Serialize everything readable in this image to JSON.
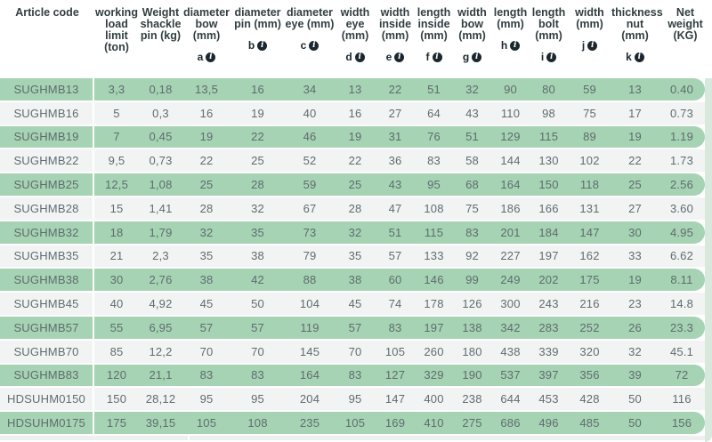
{
  "table": {
    "columns": [
      {
        "key": "article-code",
        "title": "Article code",
        "sub": ""
      },
      {
        "key": "working-load",
        "title": "working load limit (ton)",
        "sub": ""
      },
      {
        "key": "weight-shackle-pin",
        "title": "Weight shackle pin (kg)",
        "sub": ""
      },
      {
        "key": "diameter-bow",
        "title": "diameter bow (mm)",
        "sub": "a"
      },
      {
        "key": "diameter-pin",
        "title": "diameter pin (mm)",
        "sub": "b"
      },
      {
        "key": "diameter-eye",
        "title": "diameter eye (mm)",
        "sub": "c"
      },
      {
        "key": "width-eye",
        "title": "width eye (mm)",
        "sub": "d"
      },
      {
        "key": "width-inside",
        "title": "width inside (mm)",
        "sub": "e"
      },
      {
        "key": "length-inside",
        "title": "length inside (mm)",
        "sub": "f"
      },
      {
        "key": "width-bow",
        "title": "width bow (mm)",
        "sub": "g"
      },
      {
        "key": "length",
        "title": "length (mm)",
        "sub": "h"
      },
      {
        "key": "length-bolt",
        "title": "length bolt (mm)",
        "sub": "i"
      },
      {
        "key": "width",
        "title": "width (mm)",
        "sub": "j"
      },
      {
        "key": "thickness-nut",
        "title": "thickness nut (mm)",
        "sub": "k"
      },
      {
        "key": "net-weight",
        "title": "Net weight (KG)",
        "sub": ""
      }
    ],
    "info_icon_glyph": "i",
    "rows": [
      [
        "SUGHMB13",
        "3,3",
        "0,18",
        "13,5",
        "16",
        "34",
        "13",
        "22",
        "51",
        "32",
        "90",
        "80",
        "59",
        "13",
        "0.40"
      ],
      [
        "SUGHMB16",
        "5",
        "0,3",
        "16",
        "19",
        "40",
        "16",
        "27",
        "64",
        "43",
        "110",
        "98",
        "75",
        "17",
        "0.73"
      ],
      [
        "SUGHMB19",
        "7",
        "0,45",
        "19",
        "22",
        "46",
        "19",
        "31",
        "76",
        "51",
        "129",
        "115",
        "89",
        "19",
        "1.19"
      ],
      [
        "SUGHMB22",
        "9,5",
        "0,73",
        "22",
        "25",
        "52",
        "22",
        "36",
        "83",
        "58",
        "144",
        "130",
        "102",
        "22",
        "1.73"
      ],
      [
        "SUGHMB25",
        "12,5",
        "1,08",
        "25",
        "28",
        "59",
        "25",
        "43",
        "95",
        "68",
        "164",
        "150",
        "118",
        "25",
        "2.56"
      ],
      [
        "SUGHMB28",
        "15",
        "1,41",
        "28",
        "32",
        "67",
        "28",
        "47",
        "108",
        "75",
        "186",
        "166",
        "131",
        "27",
        "3.60"
      ],
      [
        "SUGHMB32",
        "18",
        "1,79",
        "32",
        "35",
        "73",
        "32",
        "51",
        "115",
        "83",
        "201",
        "184",
        "147",
        "30",
        "4.95"
      ],
      [
        "SUGHMB35",
        "21",
        "2,3",
        "35",
        "38",
        "79",
        "35",
        "57",
        "133",
        "92",
        "227",
        "197",
        "162",
        "33",
        "6.62"
      ],
      [
        "SUGHMB38",
        "30",
        "2,76",
        "38",
        "42",
        "88",
        "38",
        "60",
        "146",
        "99",
        "249",
        "202",
        "175",
        "19",
        "8.11"
      ],
      [
        "SUGHMB45",
        "40",
        "4,92",
        "45",
        "50",
        "104",
        "45",
        "74",
        "178",
        "126",
        "300",
        "243",
        "216",
        "23",
        "14.8"
      ],
      [
        "SUGHMB57",
        "55",
        "6,95",
        "57",
        "57",
        "119",
        "57",
        "83",
        "197",
        "138",
        "342",
        "283",
        "252",
        "26",
        "23.3"
      ],
      [
        "SUGHMB70",
        "85",
        "12,2",
        "70",
        "70",
        "145",
        "70",
        "105",
        "260",
        "180",
        "438",
        "339",
        "320",
        "32",
        "45.1"
      ],
      [
        "SUGHMB83",
        "120",
        "21,1",
        "83",
        "83",
        "164",
        "83",
        "127",
        "329",
        "190",
        "537",
        "397",
        "356",
        "39",
        "72"
      ],
      [
        "HDSUHM0150",
        "150",
        "28,12",
        "95",
        "95",
        "204",
        "95",
        "147",
        "400",
        "238",
        "644",
        "453",
        "428",
        "50",
        "116"
      ],
      [
        "HDSUHM0175",
        "175",
        "39,15",
        "105",
        "108",
        "235",
        "105",
        "169",
        "410",
        "275",
        "686",
        "496",
        "485",
        "50",
        "156"
      ]
    ]
  },
  "colors": {
    "row_green": "#a6d3b4",
    "row_gray": "#f2f4f4",
    "header_text": "#323e41",
    "cell_text": "#5f6c6e",
    "accent_dark": "#1a272e",
    "side_strip": "#d7e8dc"
  }
}
